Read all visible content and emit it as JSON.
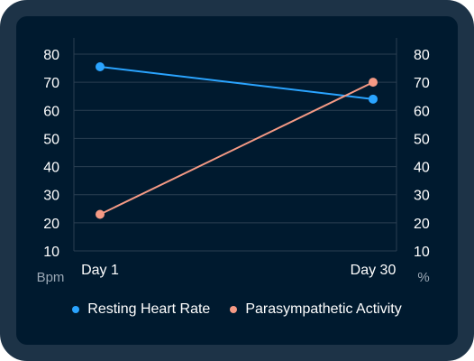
{
  "chart_data": {
    "type": "line",
    "categories": [
      "Day 1",
      "Day 30"
    ],
    "left_axis": {
      "unit": "Bpm",
      "ticks": [
        "10",
        "20",
        "30",
        "40",
        "50",
        "60",
        "70",
        "80"
      ],
      "min": 10,
      "max": 80
    },
    "right_axis": {
      "unit": "%",
      "ticks": [
        "10",
        "20",
        "30",
        "40",
        "50",
        "60",
        "70",
        "80"
      ],
      "min": 10,
      "max": 80
    },
    "series": [
      {
        "name": "Resting Heart Rate",
        "axis": "left",
        "values": [
          75.5,
          64
        ],
        "color": "#2aa4ff"
      },
      {
        "name": "Parasympathetic Activity",
        "axis": "right",
        "values": [
          23,
          70
        ],
        "color": "#f59a85"
      }
    ],
    "grid": true,
    "legend_position": "bottom"
  }
}
